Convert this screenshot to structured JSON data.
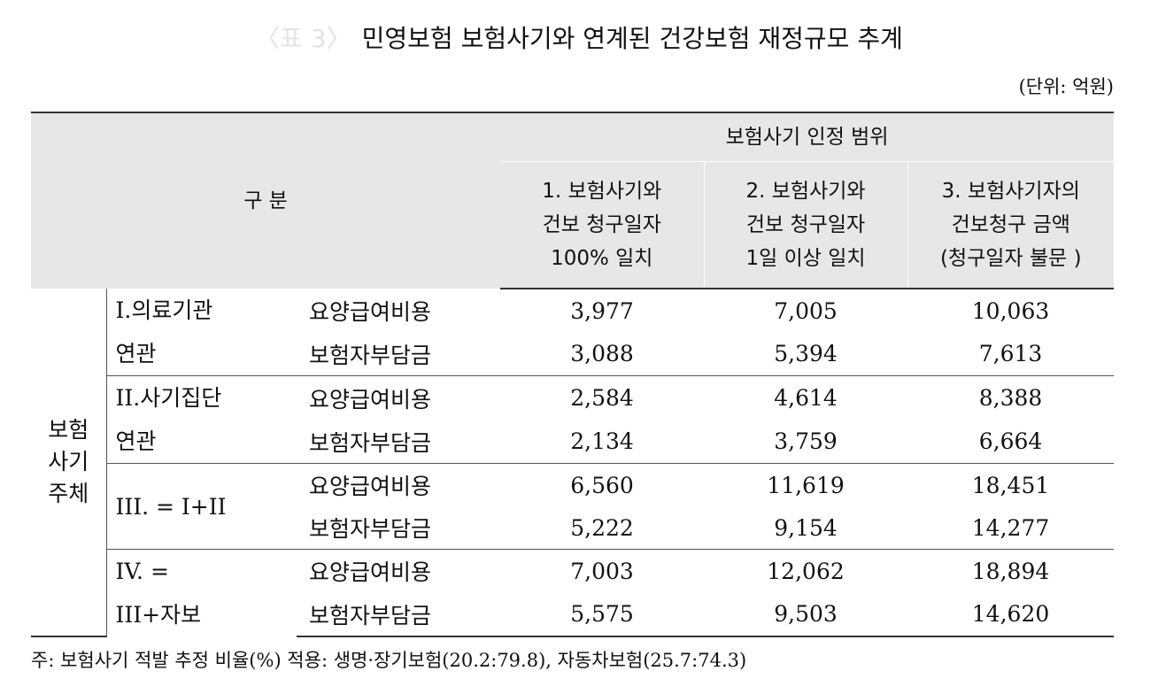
{
  "header": {
    "table_no": "〈표 3〉",
    "title": "민영보험 보험사기와 연계된 건강보험 재정규모 추계",
    "unit": "(단위: 억원)"
  },
  "table": {
    "category_header": "구 분",
    "span_header": "보험사기 인정 범위",
    "columns": [
      [
        "1. 보험사기와",
        "건보 청구일자",
        "100% 일치"
      ],
      [
        "2. 보험사기와",
        "건보 청구일자",
        "1일 이상 일치"
      ],
      [
        "3. 보험사기자의",
        "건보청구 금액",
        "(청구일자 불문 )"
      ]
    ],
    "group_label": [
      "보험",
      "사기",
      "주체"
    ],
    "groups": [
      {
        "label": [
          "I.의료기관",
          "연관"
        ],
        "rows": [
          {
            "item": "요양급여비용",
            "values": [
              "3,977",
              "7,005",
              "10,063"
            ]
          },
          {
            "item": "보험자부담금",
            "values": [
              "3,088",
              "5,394",
              "7,613"
            ]
          }
        ]
      },
      {
        "label": [
          "II.사기집단",
          "연관"
        ],
        "rows": [
          {
            "item": "요양급여비용",
            "values": [
              "2,584",
              "4,614",
              "8,388"
            ]
          },
          {
            "item": "보험자부담금",
            "values": [
              "2,134",
              "3,759",
              "6,664"
            ]
          }
        ]
      },
      {
        "label": [
          "III. = I+II"
        ],
        "rows": [
          {
            "item": "요양급여비용",
            "values": [
              "6,560",
              "11,619",
              "18,451"
            ]
          },
          {
            "item": "보험자부담금",
            "values": [
              "5,222",
              "9,154",
              "14,277"
            ]
          }
        ]
      },
      {
        "label": [
          "IV. =",
          "III+자보"
        ],
        "rows": [
          {
            "item": "요양급여비용",
            "values": [
              "7,003",
              "12,062",
              "18,894"
            ]
          },
          {
            "item": "보험자부담금",
            "values": [
              "5,575",
              "9,503",
              "14,620"
            ]
          }
        ]
      }
    ]
  },
  "footnote": "주: 보험사기 적발 추정 비율(%) 적용:  생명·장기보험(20.2:79.8), 자동차보험(25.7:74.3)"
}
